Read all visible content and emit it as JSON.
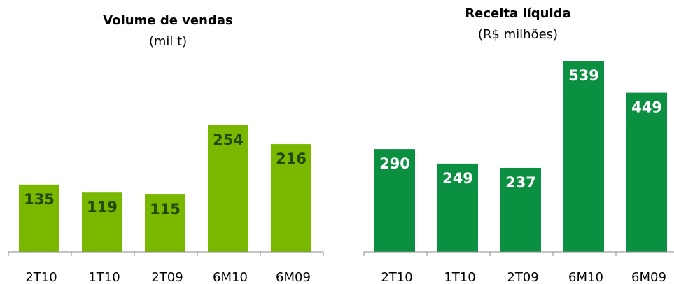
{
  "chart_data": [
    {
      "type": "bar",
      "title": "Volume de vendas",
      "subtitle": "(mil t)",
      "categories": [
        "2T10",
        "1T10",
        "2T09",
        "6M10",
        "6M09"
      ],
      "values": [
        135,
        119,
        115,
        254,
        216
      ],
      "color": "#7ab800",
      "label_color": "#1f4a00"
    },
    {
      "type": "bar",
      "title": "Receita líquida",
      "subtitle": "(R$ milhões)",
      "categories": [
        "2T10",
        "1T10",
        "2T09",
        "6M10",
        "6M09"
      ],
      "values": [
        290,
        249,
        237,
        539,
        449
      ],
      "color": "#0a9040",
      "label_color": "#ffffff"
    }
  ]
}
